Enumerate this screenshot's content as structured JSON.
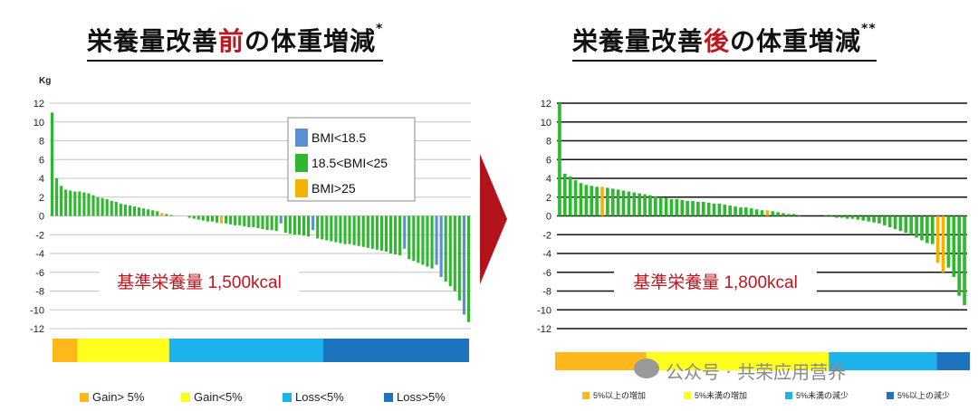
{
  "titles": {
    "left": {
      "pre": "栄養量改善",
      "hl": "前",
      "post": "の体重増減",
      "mark": "*"
    },
    "right": {
      "pre": "栄養量改善",
      "hl": "後",
      "post": "の体重増減",
      "mark": "**"
    }
  },
  "watermark": "公众号 · 共荣应用营养",
  "colors": {
    "blue": "#5b8fd4",
    "green": "#2fb82f",
    "orange": "#f5b200",
    "gain_big": "#ffb81c",
    "gain_small": "#ffff1e",
    "loss_small": "#1cb3ec",
    "loss_big": "#1e73be",
    "label_red": "#c0161f"
  },
  "chart_data": [
    {
      "type": "bar",
      "ylabel": "Kg",
      "ylim": [
        -12,
        12
      ],
      "yticks": [
        12,
        10,
        8,
        6,
        4,
        2,
        0,
        -2,
        -4,
        -6,
        -8,
        -10,
        -12
      ],
      "annotation": "基準栄養量 1,500kcal",
      "legend": [
        {
          "label": "BMI<18.5",
          "color": "#5b8fd4"
        },
        {
          "label": "18.5<BMI<25",
          "color": "#2fb82f"
        },
        {
          "label": "BMI>25",
          "color": "#f5b200"
        }
      ],
      "series": [
        {
          "name": "BMI<18.5",
          "values": [
            0,
            0,
            0,
            0,
            0,
            0,
            0,
            0,
            0,
            0,
            0,
            0,
            0,
            0,
            0,
            0,
            0,
            0,
            0,
            0,
            0,
            0,
            0,
            0,
            0,
            0,
            0,
            0,
            0,
            0,
            0,
            0,
            0,
            0,
            0,
            0,
            0,
            0,
            0,
            0,
            0,
            0,
            0,
            0,
            0,
            0,
            0,
            0,
            0,
            0,
            -0.8,
            0,
            0,
            0,
            0,
            0,
            0,
            -1.5,
            0,
            0,
            0,
            0,
            0,
            0,
            0,
            0,
            0,
            0,
            0,
            0,
            0,
            0,
            0,
            0,
            0,
            0,
            0,
            -3.5,
            0,
            0,
            0,
            0,
            0,
            0,
            -5.2,
            -6.5,
            0,
            0,
            0,
            0,
            -10.5,
            0
          ]
        },
        {
          "name": "18.5<BMI<25",
          "values": [
            11,
            4,
            3.2,
            2.8,
            2.7,
            2.6,
            2.6,
            2.5,
            2.4,
            2.2,
            2,
            1.9,
            1.8,
            1.6,
            1.5,
            1.3,
            1.2,
            1.1,
            1,
            0.9,
            0.8,
            0.7,
            0.6,
            0.5,
            0,
            0.2,
            0.1,
            0,
            0,
            0,
            -0.2,
            -0.3,
            -0.4,
            -0.5,
            -0.6,
            -0.6,
            -0.7,
            0,
            -0.8,
            -0.9,
            -1,
            -1,
            -1.1,
            -1.2,
            -1.2,
            -1.3,
            -1.4,
            -1.5,
            -1.5,
            -1.6,
            0,
            -1.8,
            -1.9,
            -2,
            -2,
            -2.1,
            -2.2,
            0,
            -2.4,
            -2.5,
            -2.6,
            -2.7,
            -2.8,
            -2.9,
            -3,
            -3,
            -3.1,
            -3.2,
            -3.3,
            -3.4,
            -3.5,
            -3.6,
            -3.7,
            -3.8,
            -4,
            -4.1,
            -4.2,
            0,
            -4.6,
            -4.8,
            -5,
            -5.2,
            -5.4,
            -5.6,
            0,
            0,
            -7,
            -7.5,
            -8,
            -9,
            0,
            -11.3
          ]
        },
        {
          "name": "BMI>25",
          "values": [
            0,
            0,
            0,
            0,
            0,
            0,
            0,
            0,
            0,
            0,
            0,
            0,
            0,
            0,
            0,
            0,
            0,
            0,
            0,
            0,
            0,
            0,
            0,
            0,
            0.3,
            0,
            0,
            0,
            0,
            0,
            0,
            0,
            0,
            0,
            0,
            0,
            0,
            -0.8,
            0,
            0,
            0,
            0,
            0,
            0,
            0,
            0,
            0,
            0,
            0,
            0,
            0,
            0,
            0,
            0,
            0,
            0,
            0,
            0,
            0,
            0,
            0,
            0,
            0,
            0,
            0,
            0,
            0,
            0,
            0,
            0,
            0,
            0,
            0,
            0,
            0,
            0,
            0,
            0,
            0,
            0,
            0,
            0,
            0,
            0,
            0,
            0,
            0,
            0,
            0,
            0,
            0,
            0
          ]
        }
      ],
      "category_bar": [
        {
          "label": "Gain> 5%",
          "share": 0.06,
          "color": "#ffb81c"
        },
        {
          "label": "Gain<5%",
          "share": 0.22,
          "color": "#ffff1e"
        },
        {
          "label": "Loss<5%",
          "share": 0.37,
          "color": "#1cb3ec"
        },
        {
          "label": "Loss>5%",
          "share": 0.35,
          "color": "#1e73be"
        }
      ]
    },
    {
      "type": "bar",
      "ylim": [
        -12,
        12
      ],
      "yticks": [
        12,
        10,
        8,
        6,
        4,
        2,
        0,
        -2,
        -4,
        -6,
        -8,
        -10,
        -12
      ],
      "annotation": "基準栄養量 1,800kcal",
      "series": [
        {
          "name": "18.5<BMI<25",
          "values": [
            12,
            4.5,
            4.2,
            3.8,
            3.5,
            3.3,
            3.2,
            3.1,
            0,
            3,
            2.9,
            2.8,
            2.7,
            2.6,
            2.5,
            2.4,
            2.3,
            2.2,
            2.1,
            2,
            1.9,
            1.8,
            1.8,
            1.7,
            1.6,
            1.6,
            1.5,
            1.5,
            1.4,
            1.3,
            1.3,
            1.2,
            1.1,
            1,
            0.9,
            0.9,
            0.8,
            0.7,
            0.6,
            0,
            0.5,
            0.4,
            0.3,
            0.2,
            0.2,
            0.1,
            0,
            0,
            0,
            0,
            -0.1,
            -0.1,
            -0.2,
            -0.2,
            -0.3,
            -0.3,
            -0.4,
            -0.5,
            -0.6,
            -0.7,
            -0.8,
            -1,
            -1.2,
            -1.4,
            -1.6,
            -1.8,
            -2,
            -2.3,
            -2.6,
            -2.9,
            -3,
            0,
            0,
            -5.5,
            -6.5,
            -8.5,
            -9.5
          ]
        },
        {
          "name": "BMI<18.5",
          "values": [
            0,
            0,
            0,
            0,
            0,
            0,
            0,
            0,
            0,
            0,
            0,
            0,
            0,
            0,
            0,
            0,
            0,
            0,
            0,
            0,
            0,
            0,
            0,
            0,
            0,
            0,
            0,
            0,
            0,
            0,
            0,
            0,
            0,
            0,
            0,
            0,
            0,
            0,
            0,
            0,
            0,
            0,
            0,
            0,
            0,
            0,
            0,
            0,
            0,
            0,
            0,
            0,
            0,
            0,
            0,
            0,
            0,
            0,
            0,
            0,
            0,
            0,
            0,
            0,
            0,
            0,
            0,
            0,
            0,
            0,
            0,
            0,
            0,
            0,
            0,
            0,
            0
          ]
        },
        {
          "name": "BMI>25",
          "values": [
            0,
            0,
            0,
            0,
            0,
            0,
            0,
            0,
            3.1,
            0,
            0,
            0,
            0,
            0,
            0,
            0,
            0,
            0,
            0,
            0,
            0,
            0,
            0,
            0,
            0,
            0,
            0,
            0,
            0,
            0,
            0,
            0,
            0,
            0,
            0,
            0,
            0,
            0,
            0,
            0.6,
            0,
            0,
            0,
            0,
            0,
            0,
            0,
            0,
            0,
            0,
            0,
            0,
            0,
            0,
            0,
            0,
            0,
            0,
            0,
            0,
            0,
            0,
            0,
            0,
            0,
            0,
            0,
            0,
            0,
            0,
            0,
            -5,
            -6,
            0,
            0,
            0,
            0
          ]
        }
      ],
      "category_bar": [
        {
          "label": "5%以上の増加",
          "share": 0.22,
          "color": "#ffb81c"
        },
        {
          "label": "5%未満の増加",
          "share": 0.44,
          "color": "#ffff1e"
        },
        {
          "label": "5%未満の減少",
          "share": 0.26,
          "color": "#1cb3ec"
        },
        {
          "label": "5%以上の減少",
          "share": 0.08,
          "color": "#1e73be"
        }
      ]
    }
  ]
}
